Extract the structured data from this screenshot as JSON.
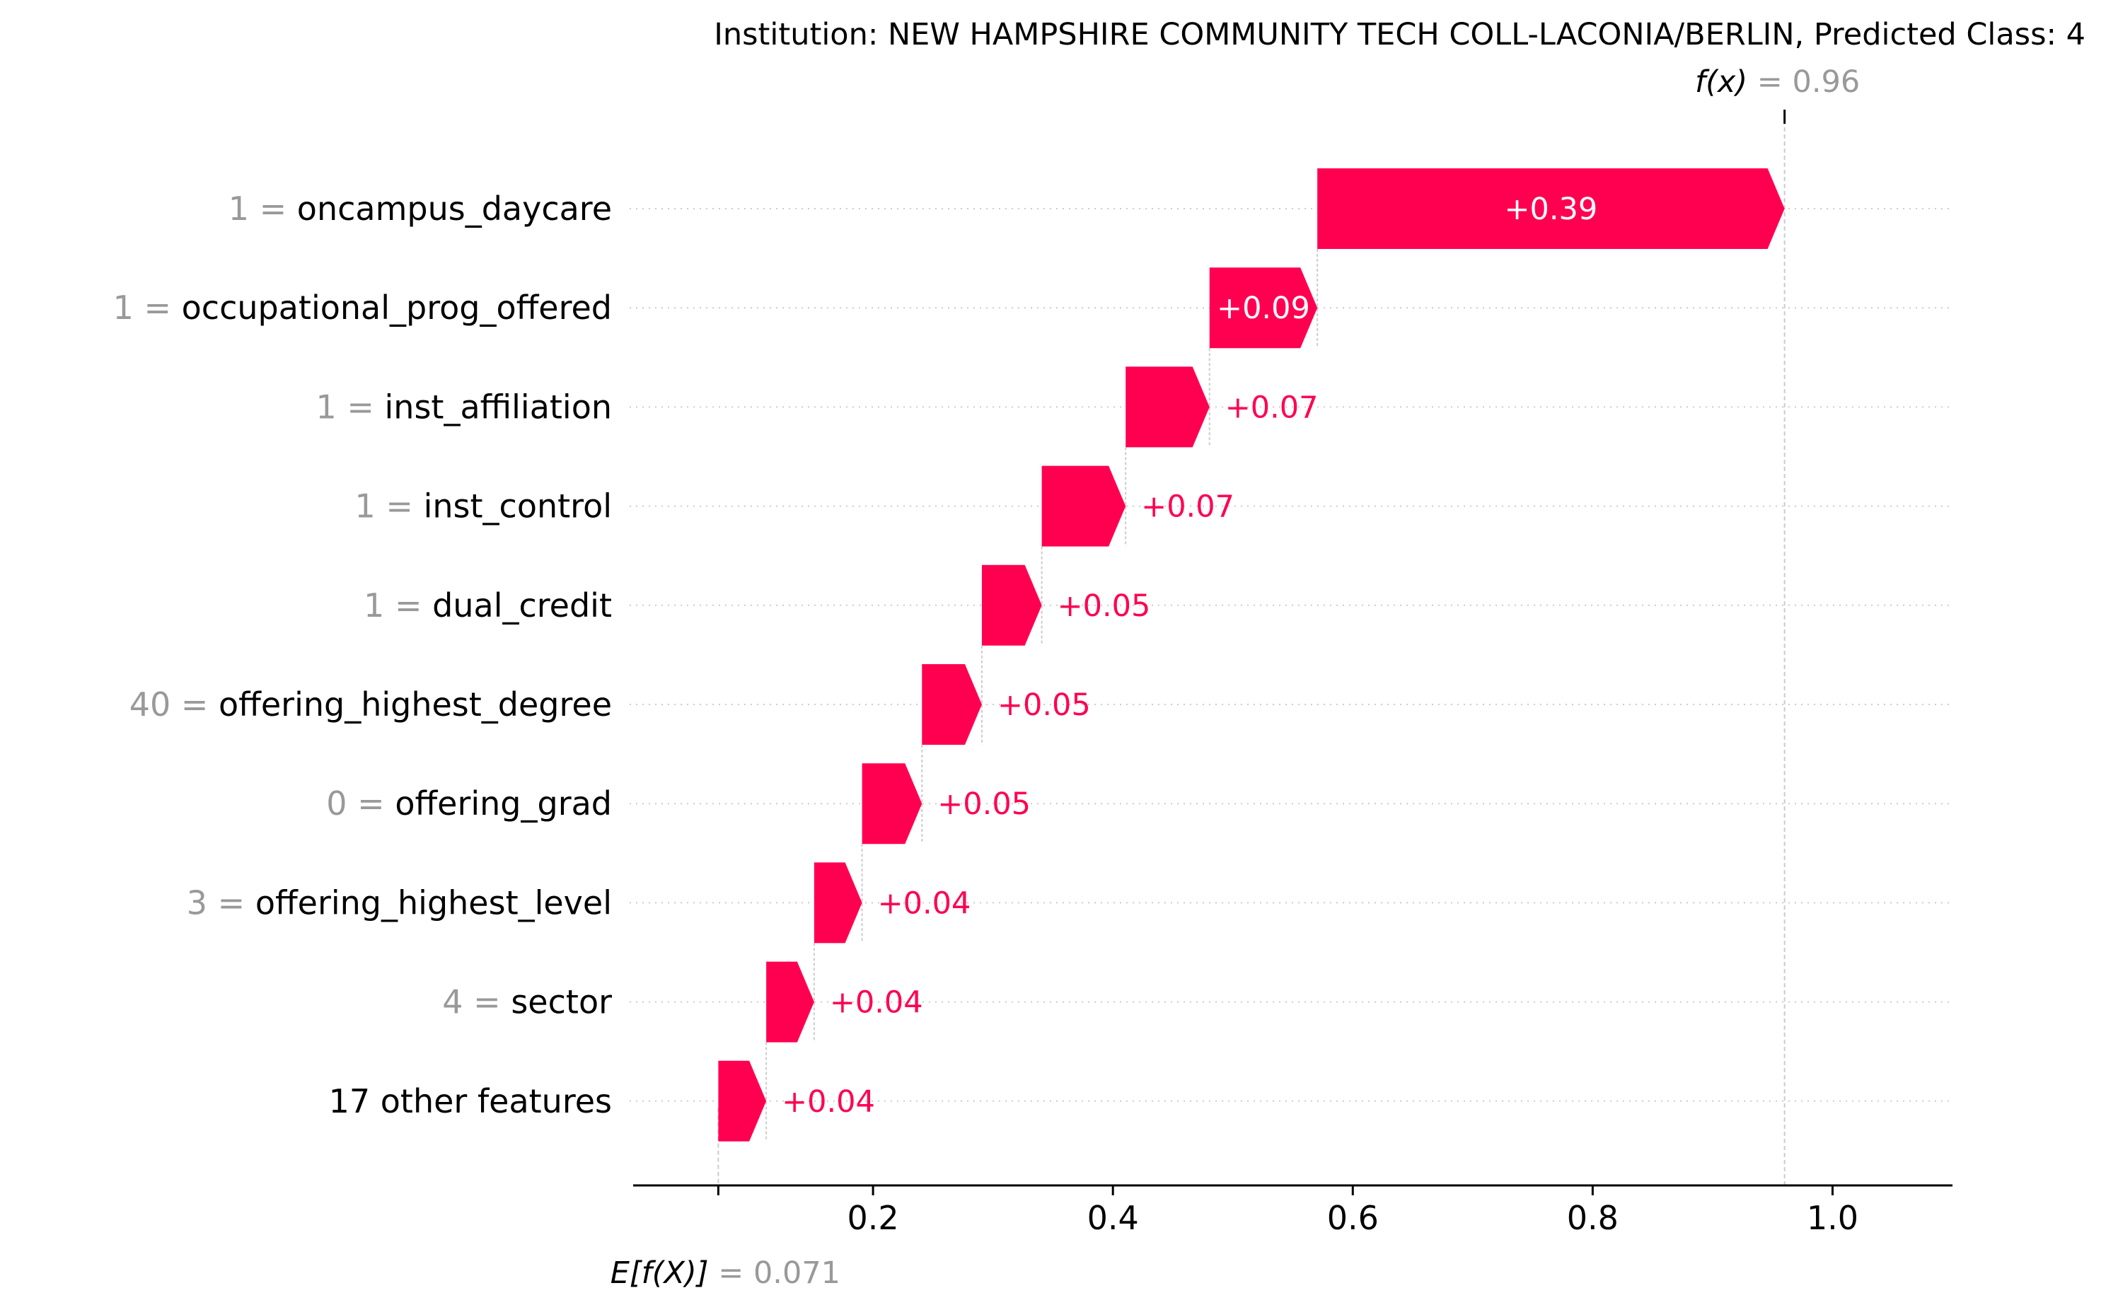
{
  "chart_data": {
    "type": "waterfall",
    "title": "Institution: NEW HAMPSHIRE COMMUNITY TECH COLL-LACONIA/BERLIN, Predicted Class: 4",
    "base_value": 0.071,
    "base_value_text": "0.071",
    "base_label_prefix": "E[f(X)]",
    "output_value": 0.96,
    "output_value_text": "0.96",
    "output_label_prefix": "f(x)",
    "xlim": [
      0.0,
      1.1
    ],
    "xticks": [
      0.2,
      0.4,
      0.6,
      0.8,
      1.0
    ],
    "xtick_labels": [
      "0.2",
      "0.4",
      "0.6",
      "0.8",
      "1.0"
    ],
    "features": [
      {
        "value": "1",
        "name": "oncampus_daycare",
        "contribution": 0.39,
        "label": "+0.39"
      },
      {
        "value": "1",
        "name": "occupational_prog_offered",
        "contribution": 0.09,
        "label": "+0.09"
      },
      {
        "value": "1",
        "name": "inst_affiliation",
        "contribution": 0.07,
        "label": "+0.07"
      },
      {
        "value": "1",
        "name": "inst_control",
        "contribution": 0.07,
        "label": "+0.07"
      },
      {
        "value": "1",
        "name": "dual_credit",
        "contribution": 0.05,
        "label": "+0.05"
      },
      {
        "value": "40",
        "name": "offering_highest_degree",
        "contribution": 0.05,
        "label": "+0.05"
      },
      {
        "value": "0",
        "name": "offering_grad",
        "contribution": 0.05,
        "label": "+0.05"
      },
      {
        "value": "3",
        "name": "offering_highest_level",
        "contribution": 0.04,
        "label": "+0.04"
      },
      {
        "value": "4",
        "name": "sector",
        "contribution": 0.04,
        "label": "+0.04"
      },
      {
        "value": "",
        "name": "17 other features",
        "contribution": 0.04,
        "label": "+0.04"
      }
    ],
    "colors": {
      "positive": "#ff0051",
      "text": "#000000",
      "muted": "#999999",
      "guide": "#cccccc",
      "bar_label_inside": "#ffffff"
    }
  }
}
